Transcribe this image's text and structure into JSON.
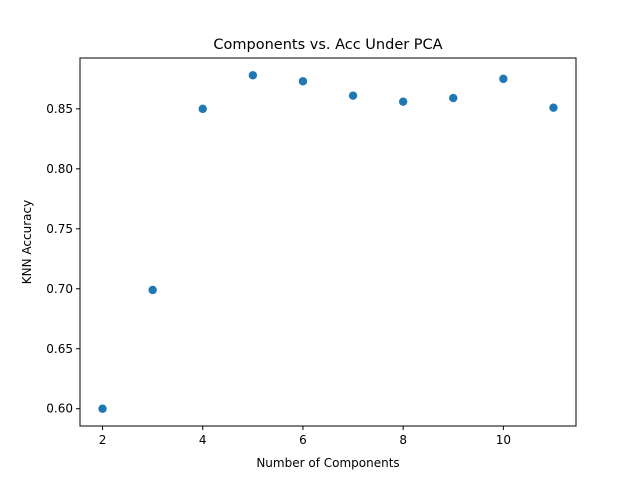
{
  "chart_data": {
    "type": "scatter",
    "title": "Components vs. Acc Under PCA",
    "xlabel": "Number of Components",
    "ylabel": "KNN Accuracy",
    "x": [
      2,
      3,
      4,
      5,
      6,
      7,
      8,
      9,
      10,
      11
    ],
    "y": [
      0.6,
      0.699,
      0.85,
      0.878,
      0.873,
      0.861,
      0.856,
      0.859,
      0.875,
      0.851
    ],
    "xlim": [
      1.55,
      11.45
    ],
    "ylim": [
      0.5856,
      0.8924
    ],
    "xticks": [
      2,
      4,
      6,
      8,
      10
    ],
    "xtick_labels": [
      "2",
      "4",
      "6",
      "8",
      "10"
    ],
    "yticks": [
      0.6,
      0.65,
      0.7,
      0.75,
      0.8,
      0.85
    ],
    "ytick_labels": [
      "0.60",
      "0.65",
      "0.70",
      "0.75",
      "0.80",
      "0.85"
    ],
    "grid": false,
    "legend": "none",
    "point_color": "#1f77b4"
  }
}
